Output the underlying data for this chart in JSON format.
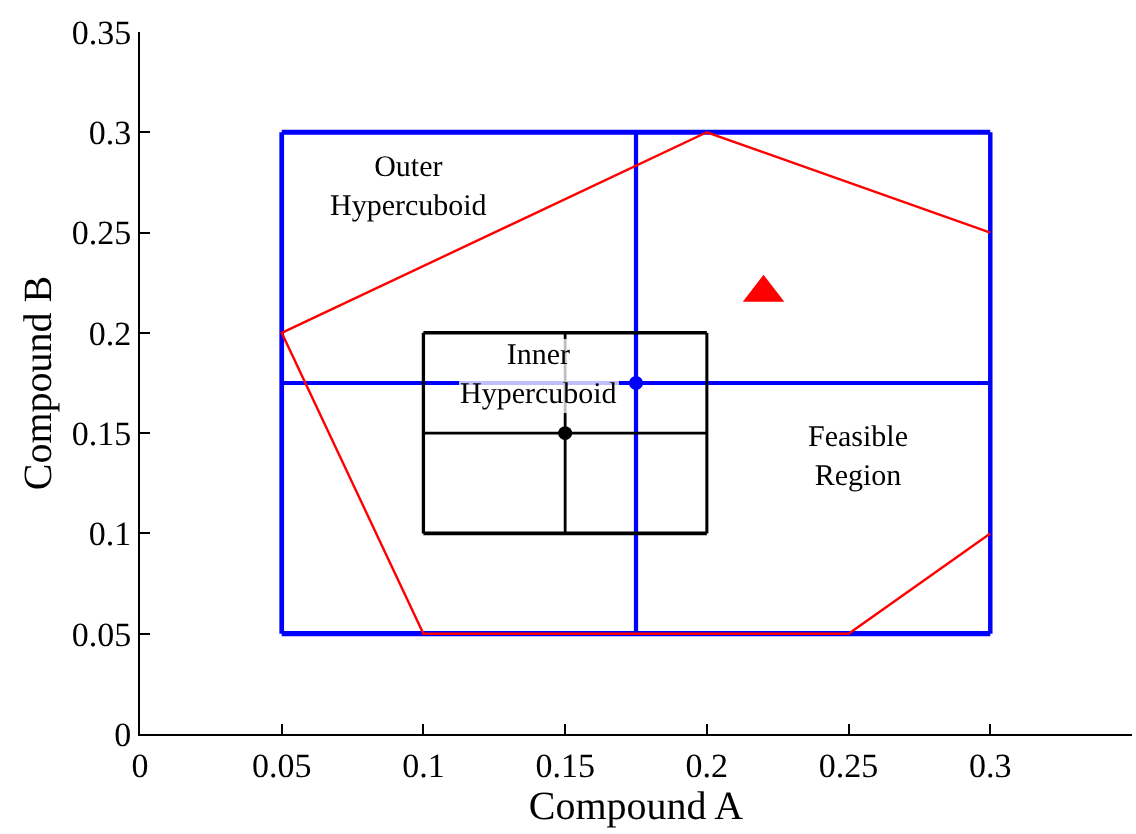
{
  "chart_data": {
    "type": "line",
    "xlabel": "Compound A",
    "ylabel": "Compound B",
    "xlim": [
      0,
      0.35
    ],
    "ylim": [
      0,
      0.35
    ],
    "xticks": [
      0,
      0.05,
      0.1,
      0.15,
      0.2,
      0.25,
      0.3
    ],
    "yticks": [
      0,
      0.05,
      0.1,
      0.15,
      0.2,
      0.25,
      0.3,
      0.35
    ],
    "series": [
      {
        "color": "#0000ff",
        "x": [
          0.05,
          0.3
        ],
        "values": [
          0.05,
          0.05
        ]
      },
      {
        "color": "#0000ff",
        "x": [
          0.05,
          0.3
        ],
        "values": [
          0.3,
          0.3
        ]
      },
      {
        "color": "#0000ff",
        "x": [
          0.05,
          0.05
        ],
        "values": [
          0.05,
          0.3
        ]
      },
      {
        "color": "#0000ff",
        "x": [
          0.3,
          0.3
        ],
        "values": [
          0.05,
          0.3
        ]
      },
      {
        "color": "#0000ff",
        "x": [
          0.175,
          0.175
        ],
        "values": [
          0.05,
          0.3
        ]
      },
      {
        "color": "#0000ff",
        "x": [
          0.05,
          0.3
        ],
        "values": [
          0.175,
          0.175
        ]
      },
      {
        "color": "#000000",
        "x": [
          0.1,
          0.2
        ],
        "values": [
          0.1,
          0.1
        ]
      },
      {
        "color": "#000000",
        "x": [
          0.1,
          0.2
        ],
        "values": [
          0.2,
          0.2
        ]
      },
      {
        "color": "#000000",
        "x": [
          0.1,
          0.1
        ],
        "values": [
          0.1,
          0.2
        ]
      },
      {
        "color": "#000000",
        "x": [
          0.2,
          0.2
        ],
        "values": [
          0.1,
          0.2
        ]
      },
      {
        "color": "#000000",
        "x": [
          0.15,
          0.15
        ],
        "values": [
          0.1,
          0.2
        ]
      },
      {
        "color": "#000000",
        "x": [
          0.1,
          0.2
        ],
        "values": [
          0.15,
          0.15
        ]
      },
      {
        "color": "#ff0000",
        "x": [
          0.3,
          0.25,
          0.1,
          0.05,
          0.2,
          0.3
        ],
        "values": [
          0.1,
          0.05,
          0.05,
          0.2,
          0.3,
          0.25
        ]
      },
      {
        "type": "scatter",
        "marker": "circle",
        "color": "#0000ff",
        "x": [
          0.175
        ],
        "values": [
          0.175
        ]
      },
      {
        "type": "scatter",
        "marker": "circle",
        "color": "#000000",
        "x": [
          0.15
        ],
        "values": [
          0.15
        ]
      },
      {
        "type": "scatter",
        "marker": "triangle",
        "color": "#ff0000",
        "x": [
          0.22
        ],
        "values": [
          0.22
        ]
      }
    ],
    "annotations": [
      "Outer\nHypercuboid",
      "Inner\nHypercuboid",
      "Feasible\nRegion"
    ]
  }
}
